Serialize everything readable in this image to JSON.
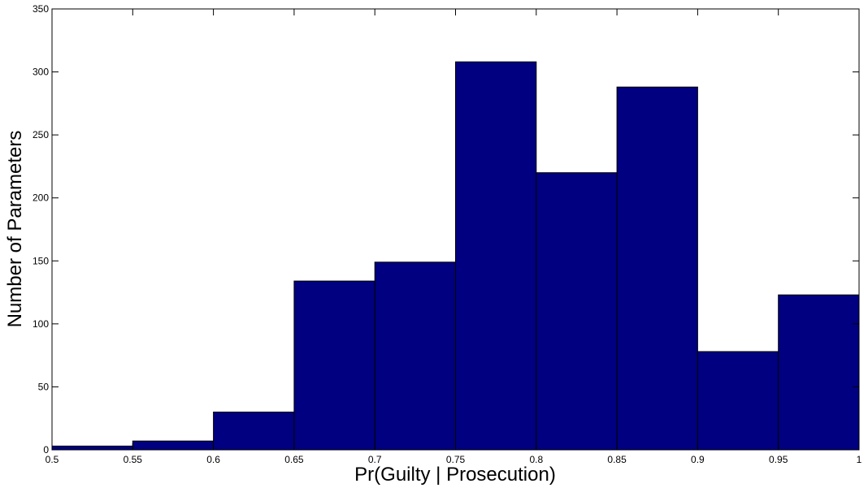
{
  "chart_data": {
    "type": "bar",
    "title": "",
    "xlabel": "Pr(Guilty | Prosecution)",
    "ylabel": "Number of Parameters",
    "bin_edges": [
      0.5,
      0.55,
      0.6,
      0.65,
      0.7,
      0.75,
      0.8,
      0.85,
      0.9,
      0.95,
      1.0
    ],
    "values": [
      3,
      7,
      30,
      134,
      149,
      308,
      220,
      288,
      78,
      123
    ],
    "xlim": [
      0.5,
      1
    ],
    "ylim": [
      0,
      350
    ],
    "xticks": [
      "0.5",
      "0.55",
      "0.6",
      "0.65",
      "0.7",
      "0.75",
      "0.8",
      "0.85",
      "0.9",
      "0.95",
      "1"
    ],
    "yticks": [
      "0",
      "50",
      "100",
      "150",
      "200",
      "250",
      "300",
      "350"
    ],
    "grid": false,
    "bar_color": "#000080",
    "edge_color": "#000000"
  }
}
